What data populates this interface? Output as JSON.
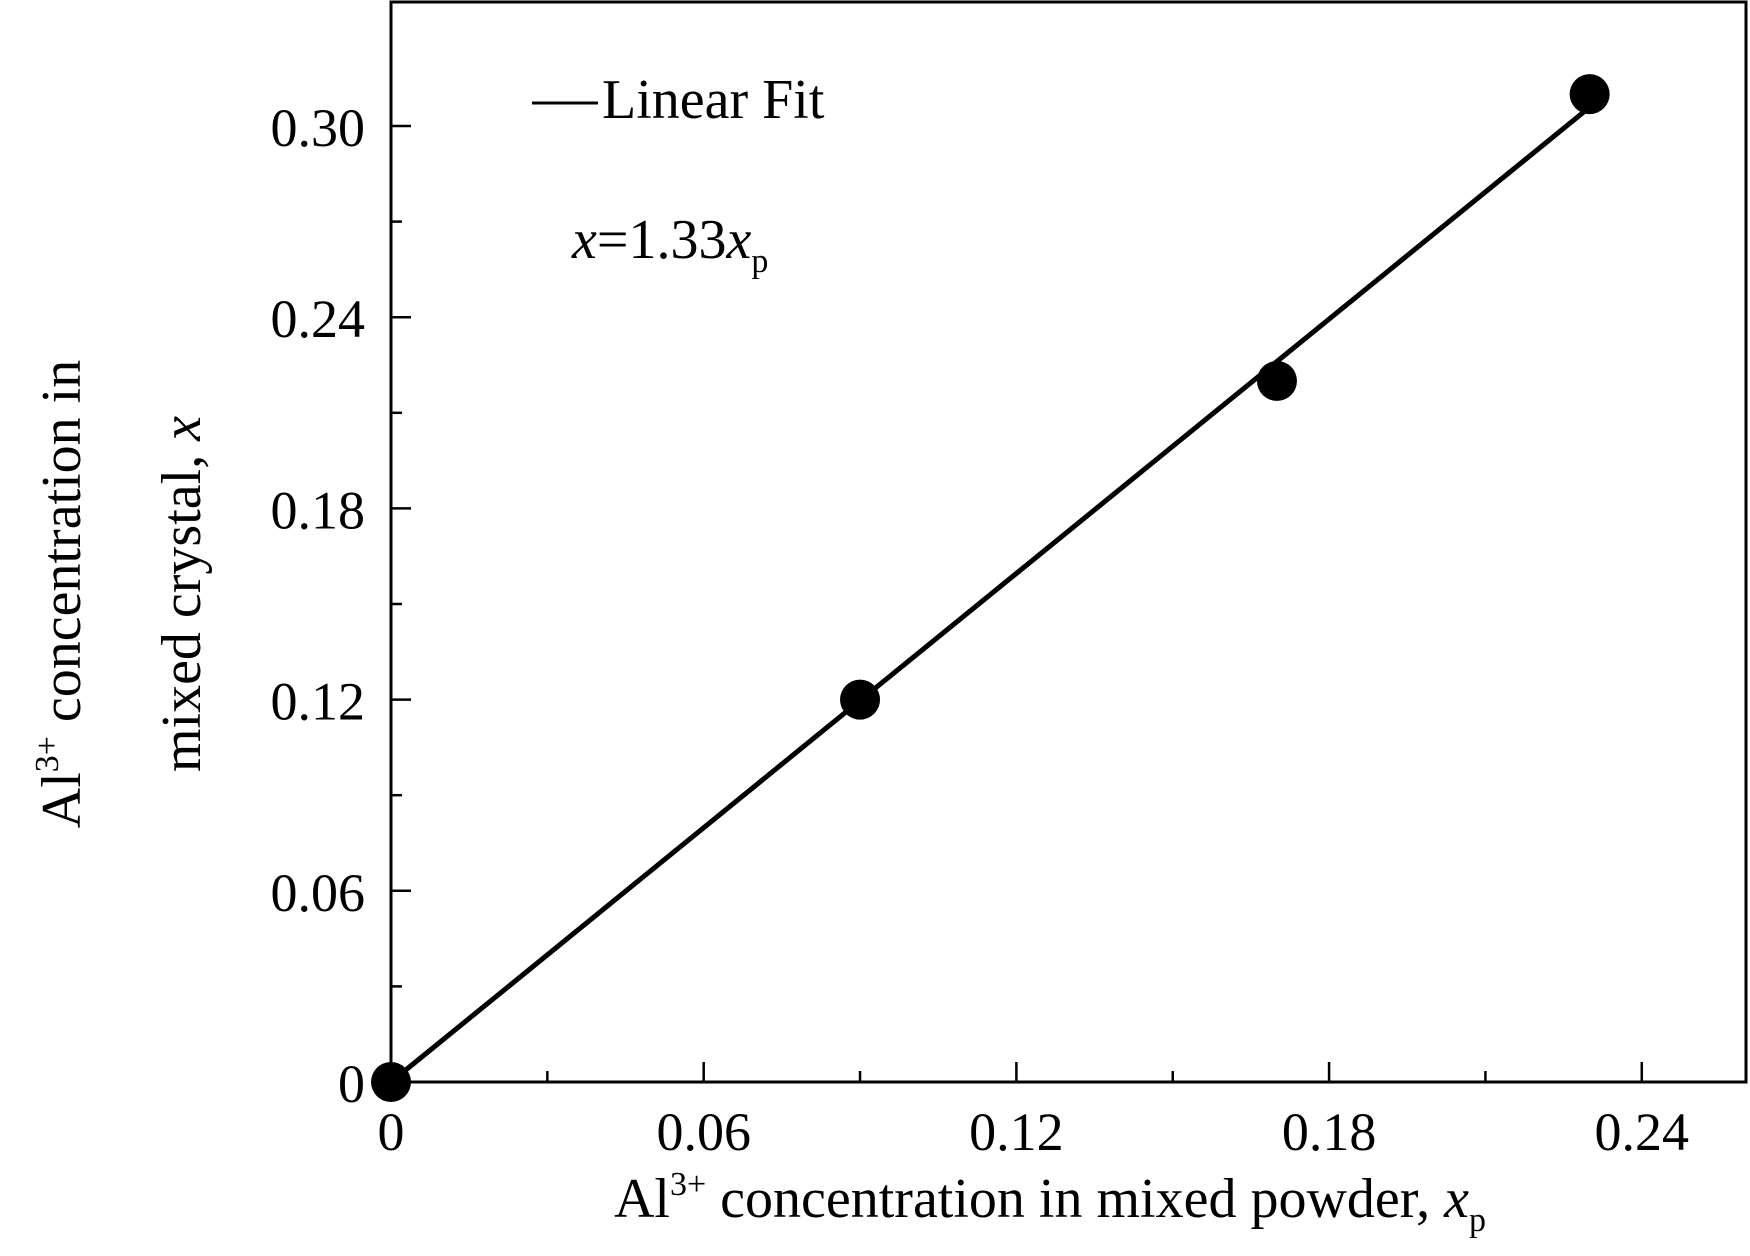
{
  "chart_data": {
    "type": "scatter",
    "xlabel": {
      "prefix": "Al",
      "superscript": "3+",
      "main": " concentration in mixed powder, ",
      "var": "x",
      "subscript": "p"
    },
    "ylabel": {
      "line1_prefix": "Al",
      "line1_superscript": "3+",
      "line1_main": " concentration in",
      "line2_main": "mixed crystal, ",
      "line2_var": "x"
    },
    "xlim": [
      0,
      0.26
    ],
    "ylim": [
      0,
      0.3
    ],
    "x_ticks": [
      {
        "value": 0,
        "label": "0"
      },
      {
        "value": 0.06,
        "label": "0.06"
      },
      {
        "value": 0.12,
        "label": "0.12"
      },
      {
        "value": 0.18,
        "label": "0.18"
      },
      {
        "value": 0.24,
        "label": "0.24"
      }
    ],
    "x_minor_ticks": [
      0.03,
      0.09,
      0.15,
      0.21
    ],
    "y_ticks": [
      {
        "value": 0,
        "label": "0"
      },
      {
        "value": 0.06,
        "label": "0.06"
      },
      {
        "value": 0.12,
        "label": "0.12"
      },
      {
        "value": 0.18,
        "label": "0.18"
      },
      {
        "value": 0.24,
        "label": "0.24"
      },
      {
        "value": 0.3,
        "label": "0.30"
      }
    ],
    "y_minor_ticks": [
      0.03,
      0.09,
      0.15,
      0.21,
      0.27
    ],
    "series": [
      {
        "marker": "filled-circle",
        "color": "#000000",
        "points": [
          {
            "x": 0.0,
            "y": 0.0
          },
          {
            "x": 0.09,
            "y": 0.12
          },
          {
            "x": 0.17,
            "y": 0.22
          },
          {
            "x": 0.23,
            "y": 0.31
          }
        ]
      }
    ],
    "fit": {
      "label": "Linear Fit",
      "slope": 1.33,
      "x_range": [
        0,
        0.23
      ],
      "color": "#000000"
    },
    "equation": {
      "lhs": "x",
      "mid": "=1.33",
      "var": "x",
      "subscript": "p"
    },
    "legend_position": "top-left",
    "grid": false
  }
}
